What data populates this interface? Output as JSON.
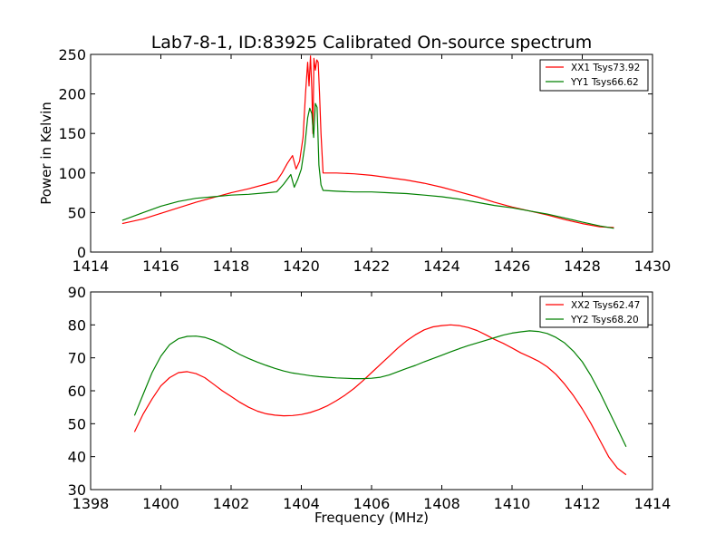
{
  "chart_data": [
    {
      "type": "line",
      "title": "Lab7-8-1, ID:83925 Calibrated On-source spectrum",
      "xlabel": "",
      "ylabel": "Power in Kelvin",
      "xlim": [
        1414,
        1430
      ],
      "ylim": [
        0,
        250
      ],
      "xticks": [
        "1414",
        "1416",
        "1418",
        "1420",
        "1422",
        "1424",
        "1426",
        "1428",
        "1430"
      ],
      "yticks": [
        "0",
        "50",
        "100",
        "150",
        "200",
        "250"
      ],
      "grid": false,
      "legend_position": "top-right",
      "series": [
        {
          "name": "XX1 Tsys73.92",
          "color": "#ff0000",
          "x": [
            1414.9,
            1415.5,
            1416.0,
            1416.5,
            1417.0,
            1417.5,
            1418.0,
            1418.5,
            1419.0,
            1419.3,
            1419.45,
            1419.6,
            1419.75,
            1419.85,
            1419.95,
            1420.05,
            1420.12,
            1420.18,
            1420.22,
            1420.26,
            1420.3,
            1420.33,
            1420.36,
            1420.4,
            1420.44,
            1420.48,
            1420.52,
            1420.56,
            1420.62,
            1421.0,
            1421.5,
            1422.0,
            1422.5,
            1423.0,
            1423.5,
            1424.0,
            1424.5,
            1425.0,
            1425.5,
            1426.0,
            1426.5,
            1427.0,
            1427.5,
            1428.0,
            1428.5,
            1428.9
          ],
          "y": [
            36,
            42,
            49,
            56,
            63,
            69,
            75,
            80,
            86,
            90,
            100,
            112,
            122,
            105,
            115,
            145,
            200,
            240,
            210,
            248,
            205,
            150,
            245,
            230,
            243,
            240,
            200,
            150,
            100,
            100,
            99,
            97,
            94,
            91,
            87,
            82,
            76,
            70,
            63,
            57,
            52,
            47,
            41,
            36,
            32,
            31
          ]
        },
        {
          "name": "YY1 Tsys66.62",
          "color": "#008000",
          "x": [
            1414.9,
            1415.5,
            1416.0,
            1416.5,
            1417.0,
            1417.5,
            1418.0,
            1418.5,
            1419.0,
            1419.3,
            1419.5,
            1419.7,
            1419.8,
            1419.9,
            1420.0,
            1420.1,
            1420.18,
            1420.24,
            1420.3,
            1420.35,
            1420.4,
            1420.45,
            1420.5,
            1420.56,
            1420.62,
            1421.0,
            1421.5,
            1422.0,
            1422.5,
            1423.0,
            1423.5,
            1424.0,
            1424.5,
            1425.0,
            1425.5,
            1426.0,
            1426.5,
            1427.0,
            1427.5,
            1428.0,
            1428.5,
            1428.9
          ],
          "y": [
            40,
            50,
            58,
            64,
            68,
            70,
            72,
            73,
            75,
            76,
            86,
            98,
            82,
            92,
            105,
            135,
            170,
            182,
            175,
            145,
            188,
            183,
            110,
            85,
            78,
            77,
            76,
            76,
            75,
            74,
            72,
            70,
            67,
            63,
            59,
            56,
            52,
            48,
            43,
            38,
            33,
            30
          ]
        }
      ]
    },
    {
      "type": "line",
      "title": "",
      "xlabel": "Frequency (MHz)",
      "ylabel": "",
      "xlim": [
        1398,
        1414
      ],
      "ylim": [
        30,
        90
      ],
      "xticks": [
        "1398",
        "1400",
        "1402",
        "1404",
        "1406",
        "1408",
        "1410",
        "1412",
        "1414"
      ],
      "yticks": [
        "30",
        "40",
        "50",
        "60",
        "70",
        "80",
        "90"
      ],
      "grid": false,
      "legend_position": "top-right",
      "series": [
        {
          "name": "XX2 Tsys62.47",
          "color": "#ff0000",
          "x": [
            1399.25,
            1399.5,
            1399.75,
            1400.0,
            1400.25,
            1400.5,
            1400.75,
            1401.0,
            1401.25,
            1401.5,
            1401.75,
            1402.0,
            1402.25,
            1402.5,
            1402.75,
            1403.0,
            1403.25,
            1403.5,
            1403.75,
            1404.0,
            1404.25,
            1404.5,
            1404.75,
            1405.0,
            1405.25,
            1405.5,
            1405.75,
            1406.0,
            1406.25,
            1406.5,
            1406.75,
            1407.0,
            1407.25,
            1407.5,
            1407.75,
            1408.0,
            1408.25,
            1408.5,
            1408.75,
            1409.0,
            1409.25,
            1409.5,
            1409.75,
            1410.0,
            1410.25,
            1410.5,
            1410.75,
            1411.0,
            1411.25,
            1411.5,
            1411.75,
            1412.0,
            1412.25,
            1412.5,
            1412.75,
            1413.0,
            1413.25
          ],
          "y": [
            47.5,
            53,
            57.5,
            61.5,
            64,
            65.5,
            65.8,
            65.2,
            64,
            62,
            60,
            58.3,
            56.5,
            55,
            53.8,
            53,
            52.6,
            52.4,
            52.5,
            52.8,
            53.4,
            54.3,
            55.5,
            57,
            58.7,
            60.7,
            63,
            65.5,
            68,
            70.5,
            73,
            75.2,
            77,
            78.5,
            79.4,
            79.8,
            80,
            79.8,
            79.2,
            78.3,
            77,
            75.6,
            74.4,
            73,
            71.5,
            70.3,
            69,
            67.3,
            65,
            62,
            58.5,
            54.5,
            50,
            45,
            40,
            36.5,
            34.5
          ]
        },
        {
          "name": "YY2 Tsys68.20",
          "color": "#008000",
          "x": [
            1399.25,
            1399.5,
            1399.75,
            1400.0,
            1400.25,
            1400.5,
            1400.75,
            1401.0,
            1401.25,
            1401.5,
            1401.75,
            1402.0,
            1402.25,
            1402.5,
            1402.75,
            1403.0,
            1403.25,
            1403.5,
            1403.75,
            1404.0,
            1404.25,
            1404.5,
            1404.75,
            1405.0,
            1405.25,
            1405.5,
            1405.75,
            1406.0,
            1406.25,
            1406.5,
            1406.75,
            1407.0,
            1407.25,
            1407.5,
            1407.75,
            1408.0,
            1408.25,
            1408.5,
            1408.75,
            1409.0,
            1409.25,
            1409.5,
            1409.75,
            1410.0,
            1410.25,
            1410.5,
            1410.75,
            1411.0,
            1411.25,
            1411.5,
            1411.75,
            1412.0,
            1412.25,
            1412.5,
            1412.75,
            1413.0,
            1413.25
          ],
          "y": [
            52.5,
            59,
            65.5,
            70.5,
            74,
            75.8,
            76.5,
            76.6,
            76.2,
            75.3,
            74,
            72.5,
            71,
            69.8,
            68.7,
            67.7,
            66.8,
            66,
            65.4,
            65,
            64.6,
            64.3,
            64.1,
            63.9,
            63.8,
            63.7,
            63.7,
            63.8,
            64.1,
            64.8,
            65.8,
            66.8,
            67.7,
            68.8,
            69.8,
            70.8,
            71.8,
            72.8,
            73.7,
            74.5,
            75.3,
            76.1,
            76.9,
            77.5,
            77.9,
            78.2,
            78,
            77.4,
            76.2,
            74.5,
            72,
            68.8,
            64.5,
            59.5,
            54,
            48.5,
            43
          ]
        }
      ]
    }
  ]
}
